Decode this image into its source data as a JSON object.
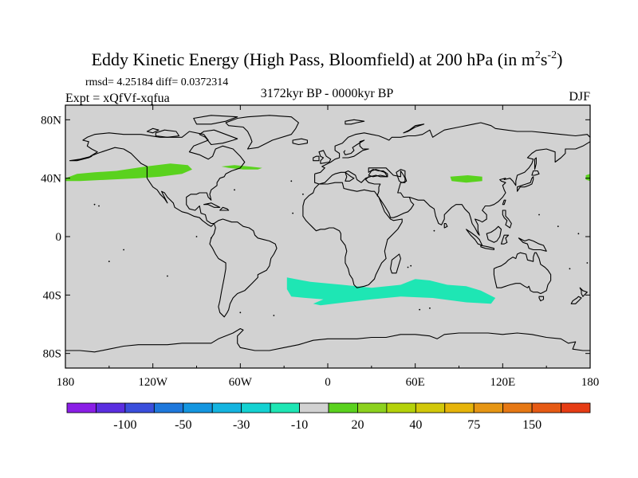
{
  "chart_data": {
    "type": "map",
    "title_main": "Eddy Kinetic Energy (High Pass, Bloomfield) at 200 hPa (in m",
    "title_unit_sup1": "2",
    "title_unit_mid": "s",
    "title_unit_sup2": "-2",
    "title_close": ")",
    "stats": "rmsd= 4.25184 diff= 0.0372314",
    "experiment": "Expt = xQfVf-xqfua",
    "period": "3172kyr BP - 0000kyr BP",
    "season": "DJF",
    "lon_range": [
      -180,
      180
    ],
    "lat_range": [
      -90,
      90
    ],
    "y_ticks": [
      {
        "lat": 80,
        "label": "80N"
      },
      {
        "lat": 40,
        "label": "40N"
      },
      {
        "lat": 0,
        "label": "0"
      },
      {
        "lat": -40,
        "label": "40S"
      },
      {
        "lat": -80,
        "label": "80S"
      }
    ],
    "x_ticks": [
      {
        "lon": -180,
        "label": "180"
      },
      {
        "lon": -120,
        "label": "120W"
      },
      {
        "lon": -60,
        "label": "60W"
      },
      {
        "lon": 0,
        "label": "0"
      },
      {
        "lon": 60,
        "label": "60E"
      },
      {
        "lon": 120,
        "label": "120E"
      },
      {
        "lon": 180,
        "label": "180"
      }
    ],
    "colorbar": {
      "colors": [
        "#8a1ee6",
        "#5a2ee0",
        "#3a4edc",
        "#1e78dc",
        "#1496e0",
        "#14b4e0",
        "#14d2d2",
        "#1ee6b4",
        "#d2d2d2",
        "#5ad21e",
        "#8cd21e",
        "#b4d20a",
        "#d2c80a",
        "#e6b40a",
        "#e69614",
        "#e67814",
        "#e65a14",
        "#e63c14"
      ],
      "labels": [
        {
          "after": 1,
          "text": "-100"
        },
        {
          "after": 3,
          "text": "-50"
        },
        {
          "after": 5,
          "text": "-30"
        },
        {
          "after": 7,
          "text": "-10"
        },
        {
          "after": 9,
          "text": "20"
        },
        {
          "after": 11,
          "text": "40"
        },
        {
          "after": 13,
          "text": "75"
        },
        {
          "after": 15,
          "text": "150"
        }
      ]
    },
    "anomaly_regions": [
      {
        "name": "north-pacific-jet",
        "category": "10 to 20",
        "color": "#5ad21e",
        "lonlat": [
          [
            -180,
            40
          ],
          [
            -172,
            43
          ],
          [
            -160,
            44
          ],
          [
            -145,
            45
          ],
          [
            -125,
            48
          ],
          [
            -108,
            50
          ],
          [
            -96,
            49
          ],
          [
            -93,
            46
          ],
          [
            -100,
            43
          ],
          [
            -115,
            41
          ],
          [
            -130,
            40
          ],
          [
            -150,
            39
          ],
          [
            -170,
            38
          ],
          [
            -180,
            38
          ]
        ]
      },
      {
        "name": "north-atlantic-jet",
        "category": "10 to 20",
        "color": "#5ad21e",
        "lonlat": [
          [
            -73,
            48
          ],
          [
            -64,
            49
          ],
          [
            -54,
            48
          ],
          [
            -45,
            47
          ],
          [
            -48,
            46
          ],
          [
            -58,
            46
          ],
          [
            -68,
            47
          ]
        ]
      },
      {
        "name": "central-asia-jet",
        "category": "10 to 20",
        "color": "#5ad21e",
        "lonlat": [
          [
            84,
            41
          ],
          [
            96,
            42
          ],
          [
            106,
            41
          ],
          [
            106,
            38
          ],
          [
            95,
            37
          ],
          [
            85,
            38
          ]
        ]
      },
      {
        "name": "dateline-jet-edge",
        "category": "10 to 20",
        "color": "#5ad21e",
        "lonlat": [
          [
            177,
            42
          ],
          [
            180,
            43
          ],
          [
            180,
            38
          ],
          [
            177,
            39
          ]
        ]
      },
      {
        "name": "southern-ocean-storm-track",
        "category": "-20 to -10",
        "color": "#1ee6b4",
        "lonlat": [
          [
            -28,
            -28
          ],
          [
            -12,
            -31
          ],
          [
            10,
            -33
          ],
          [
            30,
            -35
          ],
          [
            50,
            -33
          ],
          [
            60,
            -29
          ],
          [
            70,
            -30
          ],
          [
            82,
            -33
          ],
          [
            95,
            -34
          ],
          [
            105,
            -37
          ],
          [
            115,
            -42
          ],
          [
            112,
            -46
          ],
          [
            95,
            -45
          ],
          [
            72,
            -42
          ],
          [
            50,
            -41
          ],
          [
            30,
            -43
          ],
          [
            12,
            -45
          ],
          [
            -5,
            -47
          ],
          [
            -10,
            -46
          ],
          [
            -3,
            -43
          ],
          [
            -15,
            -42
          ],
          [
            -25,
            -41
          ],
          [
            -28,
            -36
          ]
        ]
      }
    ]
  }
}
